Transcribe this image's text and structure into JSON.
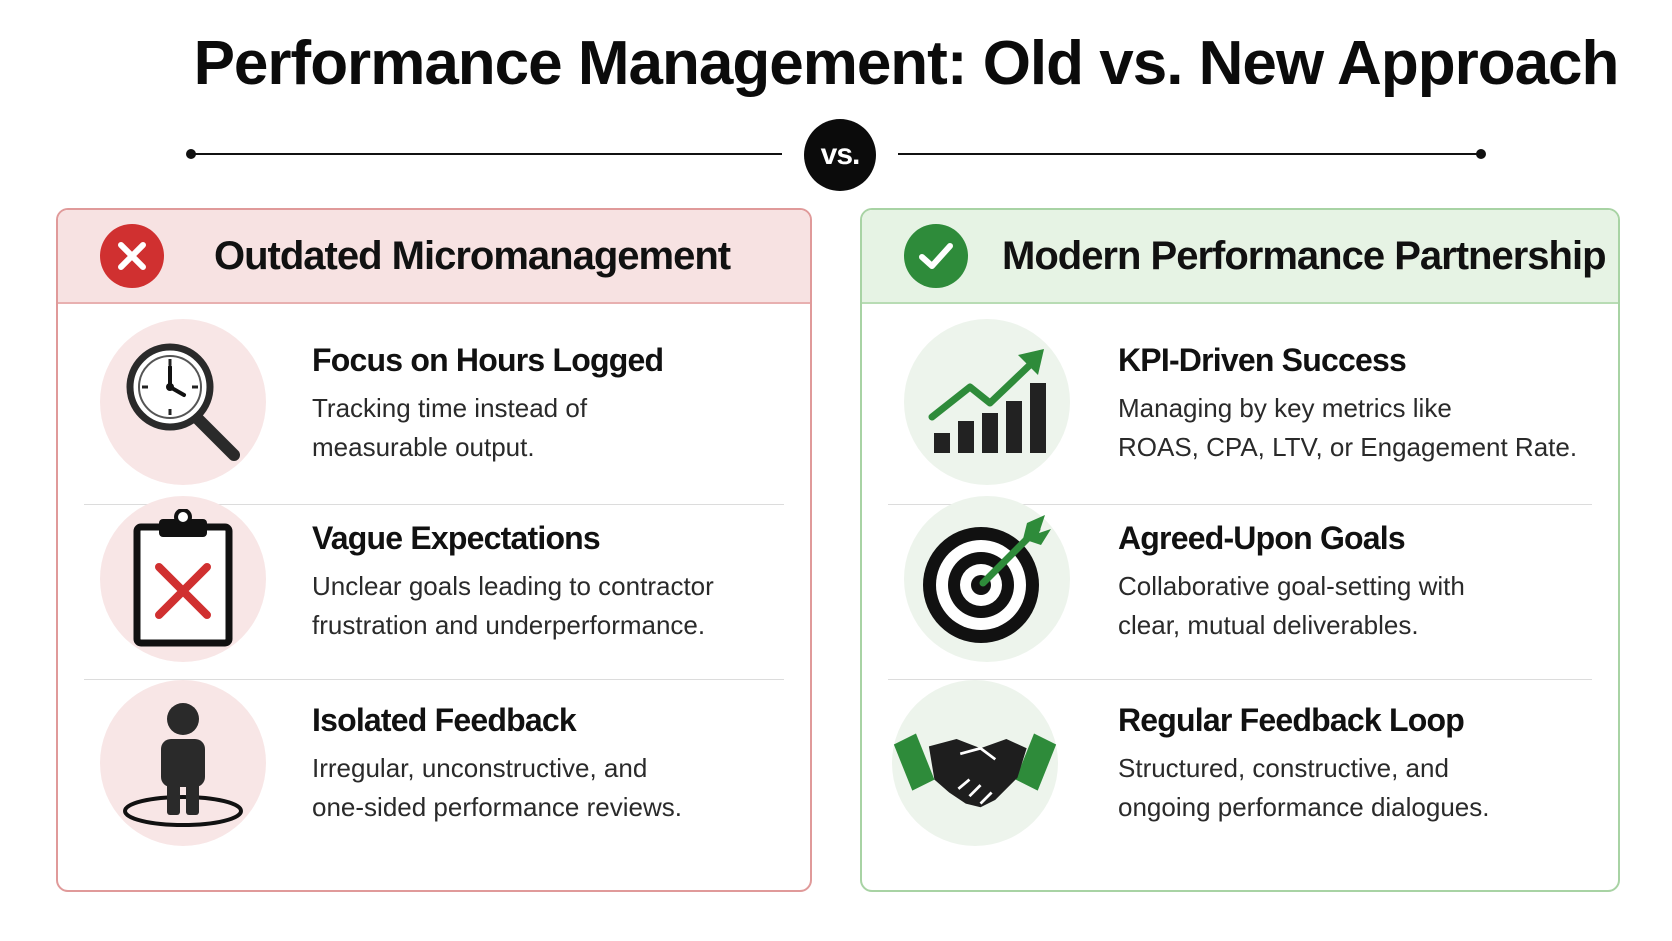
{
  "title": "Performance Management: Old vs. New Approach",
  "vs_label": "vs.",
  "colors": {
    "old_accent": "#d03030",
    "new_accent": "#2e8b3a"
  },
  "old": {
    "header_icon": "x-circle-icon",
    "header": "Outdated Micromanagement",
    "items": [
      {
        "icon": "clock-magnifier-icon",
        "heading": "Focus on Hours Logged",
        "desc_line1": "Tracking time instead of",
        "desc_line2": "measurable output."
      },
      {
        "icon": "clipboard-x-icon",
        "heading": "Vague Expectations",
        "desc_line1": "Unclear goals leading to contractor",
        "desc_line2": "frustration and underperformance."
      },
      {
        "icon": "isolated-person-icon",
        "heading": "Isolated Feedback",
        "desc_line1": "Irregular, unconstructive, and",
        "desc_line2": "one-sided performance reviews."
      }
    ]
  },
  "new": {
    "header_icon": "check-circle-icon",
    "header": "Modern Performance Partnership",
    "items": [
      {
        "icon": "growth-chart-icon",
        "heading": "KPI-Driven Success",
        "desc_line1": "Managing by key metrics like",
        "desc_line2": "ROAS, CPA, LTV, or Engagement Rate."
      },
      {
        "icon": "target-arrow-icon",
        "heading": "Agreed-Upon Goals",
        "desc_line1": "Collaborative goal-setting with",
        "desc_line2": "clear, mutual deliverables."
      },
      {
        "icon": "handshake-icon",
        "heading": "Regular Feedback Loop",
        "desc_line1": "Structured, constructive, and",
        "desc_line2": "ongoing performance dialogues."
      }
    ]
  }
}
